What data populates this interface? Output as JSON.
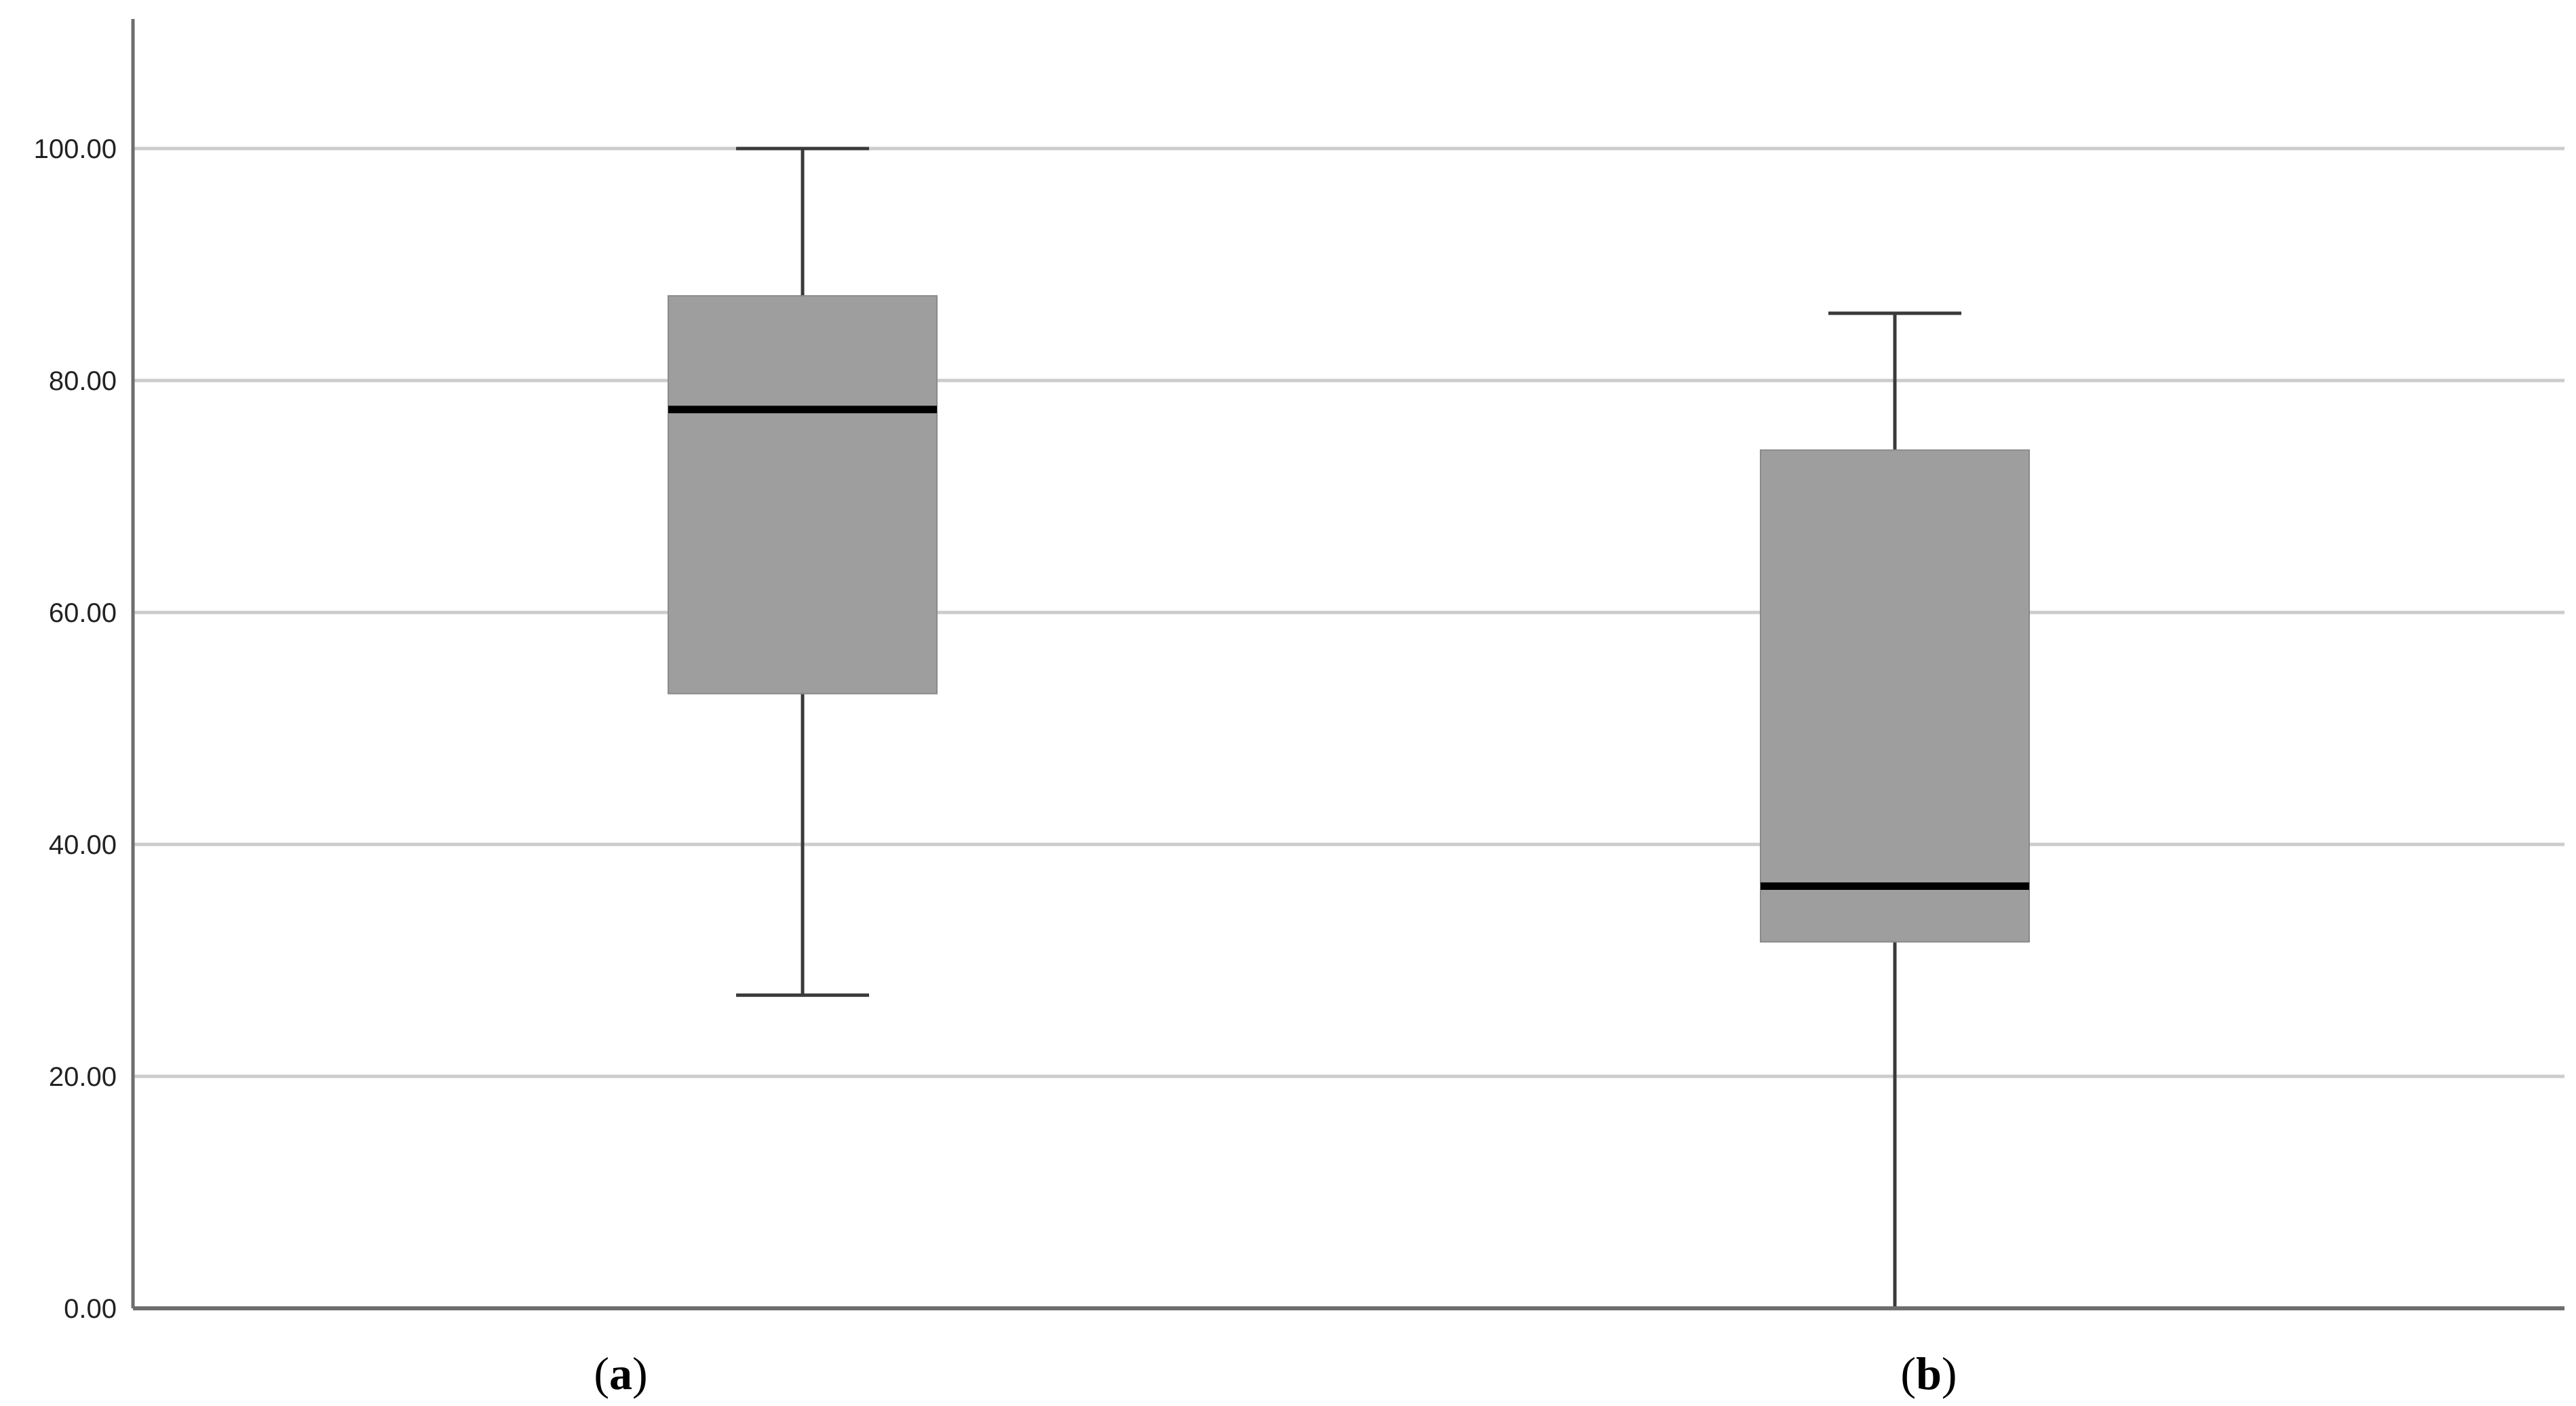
{
  "chart_data": {
    "type": "box",
    "title": "",
    "xlabel": "",
    "ylabel": "",
    "ylim": [
      0,
      110
    ],
    "yticks": [
      0,
      20,
      40,
      60,
      80,
      100
    ],
    "ytick_labels": [
      "0.00",
      "20.00",
      "40.00",
      "60.00",
      "80.00",
      "100.00"
    ],
    "grid": true,
    "categories": [
      {
        "open": "(",
        "letter": "a",
        "close": ")"
      },
      {
        "open": "(",
        "letter": "b",
        "close": ")"
      }
    ],
    "boxes": [
      {
        "min": 27,
        "q1": 53,
        "median": 77.5,
        "q3": 87.3,
        "max": 100
      },
      {
        "min": 0,
        "q1": 31.6,
        "median": 36.4,
        "q3": 74,
        "max": 85.8
      }
    ]
  },
  "colors": {
    "box_fill": "#9e9e9e",
    "whisker": "#3a3a3a",
    "median": "#000000",
    "grid": "#cccccc",
    "axis": "#6e6e6e"
  }
}
